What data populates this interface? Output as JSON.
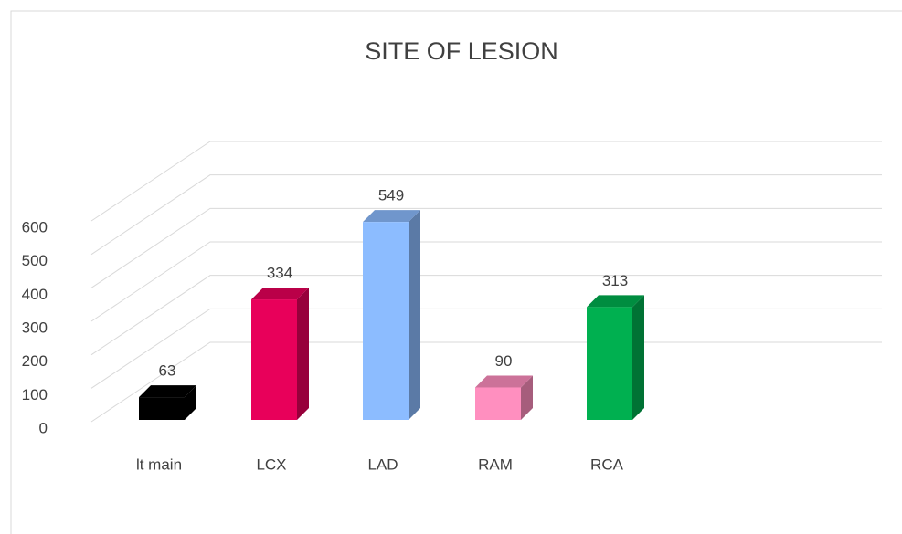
{
  "chart_data": {
    "type": "bar3d",
    "title": "SITE OF LESION",
    "categories": [
      "lt main",
      "LCX",
      "LAD",
      "RAM",
      "RCA"
    ],
    "values": [
      63,
      334,
      549,
      90,
      313
    ],
    "colors": [
      "#000000",
      "#e8005a",
      "#8cbcff",
      "#ff8fbf",
      "#00b050"
    ],
    "ylim": [
      0,
      600
    ],
    "yticks": [
      0,
      100,
      200,
      300,
      400,
      500,
      600
    ],
    "grid": true
  }
}
